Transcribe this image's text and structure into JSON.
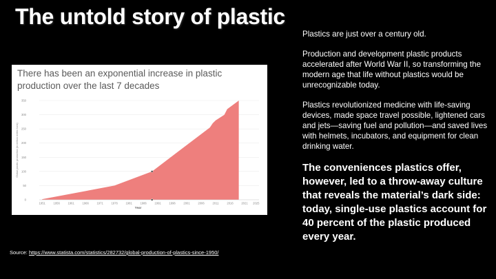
{
  "slide": {
    "title": "The untold story of plastic",
    "source_label": "Source:",
    "source_url": "https://www.statista.com/statistics/282732/global-production-of-plastics-since-1950/",
    "paragraphs": [
      "Plastics are just over a century old.",
      "Production and development plastic products accelerated after World War II, so transforming the modern age that life without plastics would be unrecognizable today.",
      "Plastics revolutionized medicine with life-saving devices, made space travel possible, lightened cars and jets—saving fuel and pollution—and saved lives with helmets, incubators, and equipment for clean drinking water."
    ],
    "highlight": "The conveniences plastics offer, however, led to a throw-away culture that reveals the material’s dark side: today, single-use plastics account for 40 percent of the plastic produced every year."
  },
  "chart_data": {
    "type": "area",
    "title": "There has been an exponential increase in plastic production over the last 7 decades",
    "xlabel": "Year",
    "ylabel": "Global plastic production (in million metric tons)",
    "x_ticks": [
      "1951",
      "1956",
      "1961",
      "1966",
      "1971",
      "1976",
      "1981",
      "1986",
      "1991",
      "1996",
      "2001",
      "2006",
      "2011",
      "2016",
      "2021",
      "2025"
    ],
    "x_tick_values": [
      1951,
      1956,
      1961,
      1966,
      1971,
      1976,
      1981,
      1986,
      1991,
      1996,
      2001,
      2006,
      2011,
      2016,
      2021,
      2025
    ],
    "y_ticks": [
      0,
      50,
      100,
      150,
      200,
      250,
      300,
      350
    ],
    "xlim": [
      1950,
      2026
    ],
    "ylim": [
      0,
      350
    ],
    "grid": true,
    "series": [
      {
        "color": "#ee7f7d",
        "x": [
          1951,
          1976,
          1989,
          2009,
          2010,
          2011,
          2014,
          2015,
          2019
        ],
        "y": [
          2,
          50,
          100,
          255,
          270,
          280,
          300,
          320,
          350
        ]
      }
    ],
    "markers": [
      {
        "x": 1989,
        "y": 100
      },
      {
        "x": 1989,
        "y": 0
      }
    ]
  }
}
